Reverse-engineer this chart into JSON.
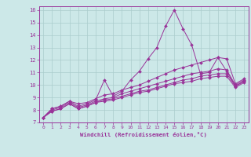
{
  "background_color": "#cce8e8",
  "grid_color": "#aacccc",
  "line_color": "#993399",
  "xlabel": "Windchill (Refroidissement éolien,°C)",
  "xlim": [
    -0.5,
    23.5
  ],
  "ylim": [
    7,
    16.3
  ],
  "xticks": [
    0,
    1,
    2,
    3,
    4,
    5,
    6,
    7,
    8,
    9,
    10,
    11,
    12,
    13,
    14,
    15,
    16,
    17,
    18,
    19,
    20,
    21,
    22,
    23
  ],
  "yticks": [
    7,
    8,
    9,
    10,
    11,
    12,
    13,
    14,
    15,
    16
  ],
  "series": [
    [
      7.4,
      8.1,
      8.3,
      8.7,
      8.3,
      8.5,
      8.8,
      10.4,
      9.1,
      9.5,
      10.4,
      11.1,
      12.1,
      13.0,
      14.7,
      16.0,
      14.5,
      13.2,
      10.9,
      11.0,
      12.2,
      11.1,
      9.9,
      10.3
    ],
    [
      7.4,
      8.1,
      8.3,
      8.7,
      8.5,
      8.6,
      8.9,
      9.2,
      9.3,
      9.6,
      9.8,
      10.0,
      10.3,
      10.6,
      10.9,
      11.2,
      11.4,
      11.6,
      11.8,
      12.0,
      12.2,
      12.1,
      10.1,
      10.5
    ],
    [
      7.4,
      8.0,
      8.2,
      8.6,
      8.2,
      8.4,
      8.7,
      8.9,
      9.0,
      9.3,
      9.5,
      9.7,
      9.9,
      10.1,
      10.3,
      10.5,
      10.7,
      10.9,
      11.0,
      11.1,
      11.3,
      11.2,
      10.0,
      10.4
    ],
    [
      7.4,
      7.9,
      8.1,
      8.5,
      8.1,
      8.3,
      8.6,
      8.8,
      8.9,
      9.1,
      9.3,
      9.5,
      9.6,
      9.8,
      10.0,
      10.2,
      10.4,
      10.5,
      10.7,
      10.8,
      10.9,
      10.9,
      9.9,
      10.3
    ],
    [
      7.4,
      7.9,
      8.1,
      8.5,
      8.1,
      8.3,
      8.6,
      8.7,
      8.8,
      9.0,
      9.2,
      9.4,
      9.5,
      9.7,
      9.9,
      10.1,
      10.2,
      10.3,
      10.5,
      10.6,
      10.7,
      10.7,
      9.8,
      10.2
    ]
  ]
}
